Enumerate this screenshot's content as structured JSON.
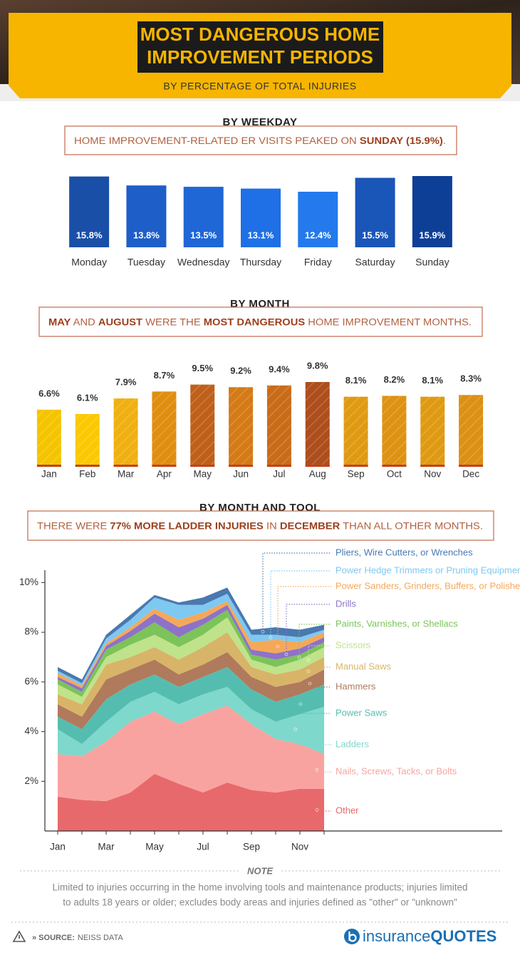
{
  "header": {
    "title": [
      "MOST DANGEROUS HOME",
      "IMPROVEMENT PERIODS"
    ],
    "subtitle": "BY PERCENTAGE OF TOTAL INJURIES"
  },
  "chart_data": [
    {
      "type": "bar",
      "title": "BY WEEKDAY",
      "annotation": [
        {
          "text": "HOME IMPROVEMENT-RELATED ER VISITS PEAKED ON ",
          "bold": false
        },
        {
          "text": "SUNDAY (15.9%)",
          "bold": true
        },
        {
          "text": ".",
          "bold": false
        }
      ],
      "categories": [
        "Monday",
        "Tuesday",
        "Wednesday",
        "Thursday",
        "Friday",
        "Saturday",
        "Sunday"
      ],
      "values": [
        15.8,
        13.8,
        13.5,
        13.1,
        12.4,
        15.5,
        15.9
      ],
      "value_labels": [
        "15.8%",
        "13.8%",
        "13.5%",
        "13.1%",
        "12.4%",
        "15.5%",
        "15.9%"
      ],
      "colors": [
        "#1a4fa8",
        "#1e5ec8",
        "#1f66d6",
        "#1f70e6",
        "#2479ec",
        "#1a55b8",
        "#0e3f96"
      ]
    },
    {
      "type": "bar",
      "title": "BY MONTH",
      "annotation": [
        {
          "text": "MAY",
          "bold": true
        },
        {
          "text": " AND ",
          "bold": false
        },
        {
          "text": "AUGUST",
          "bold": true
        },
        {
          "text": " WERE THE ",
          "bold": false
        },
        {
          "text": "MOST DANGEROUS",
          "bold": true
        },
        {
          "text": " HOME IMPROVEMENT MONTHS.",
          "bold": false
        }
      ],
      "categories": [
        "Jan",
        "Feb",
        "Mar",
        "Apr",
        "May",
        "Jun",
        "Jul",
        "Aug",
        "Sep",
        "Oct",
        "Nov",
        "Dec"
      ],
      "values": [
        6.6,
        6.1,
        7.9,
        8.7,
        9.5,
        9.2,
        9.4,
        9.8,
        8.1,
        8.2,
        8.1,
        8.3
      ],
      "value_labels": [
        "6.6%",
        "6.1%",
        "7.9%",
        "8.7%",
        "9.5%",
        "9.2%",
        "9.4%",
        "9.8%",
        "8.1%",
        "8.2%",
        "8.1%",
        "8.3%"
      ],
      "colors": [
        "#f5c400",
        "#fcc800",
        "#f0b010",
        "#e08e10",
        "#bf601a",
        "#d47a16",
        "#c86c18",
        "#ad4e1c",
        "#e09a12",
        "#de9212",
        "#e09a12",
        "#dc9014"
      ]
    },
    {
      "type": "stacked-area",
      "title": "BY MONTH AND TOOL",
      "annotation": [
        {
          "text": "THERE WERE ",
          "bold": false
        },
        {
          "text": "77% MORE LADDER INJURIES",
          "bold": true
        },
        {
          "text": " IN ",
          "bold": false
        },
        {
          "text": "DECEMBER",
          "bold": true
        },
        {
          "text": " THAN ALL OTHER MONTHS.",
          "bold": false
        }
      ],
      "categories": [
        "Jan",
        null,
        "Mar",
        null,
        "May",
        null,
        "Jul",
        null,
        "Sep",
        null,
        "Nov",
        null
      ],
      "ylim": [
        0,
        10.5
      ],
      "yticks": [
        {
          "value": 2,
          "label": "2%"
        },
        {
          "value": 4,
          "label": "4%"
        },
        {
          "value": 6,
          "label": "6%"
        },
        {
          "value": 8,
          "label": "8%"
        },
        {
          "value": 10,
          "label": "10%"
        }
      ],
      "series": [
        {
          "name": "Other",
          "color": "#e8696b",
          "values": [
            1.38,
            1.25,
            1.2,
            1.55,
            2.3,
            1.9,
            1.55,
            1.95,
            1.65,
            1.55,
            1.7,
            1.7
          ]
        },
        {
          "name": "Nails, Screws, Tacks, or Bolts",
          "color": "#f9a3a0",
          "values": [
            1.72,
            1.75,
            2.4,
            2.85,
            2.5,
            2.4,
            3.15,
            3.1,
            2.65,
            2.15,
            1.8,
            1.4
          ]
        },
        {
          "name": "Ladders",
          "color": "#7ed8cc",
          "values": [
            1.0,
            0.5,
            0.8,
            0.8,
            0.8,
            0.8,
            0.8,
            0.75,
            0.6,
            0.7,
            1.2,
            1.9
          ]
        },
        {
          "name": "Power Saws",
          "color": "#55bdb0",
          "values": [
            0.5,
            0.6,
            0.9,
            0.7,
            0.7,
            0.7,
            0.7,
            0.8,
            0.8,
            0.8,
            0.8,
            0.9
          ]
        },
        {
          "name": "Hammers",
          "color": "#b07a5c",
          "values": [
            0.5,
            0.5,
            0.8,
            0.6,
            0.6,
            0.5,
            0.5,
            0.6,
            0.5,
            0.6,
            0.5,
            0.6
          ]
        },
        {
          "name": "Manual Saws",
          "color": "#d8b468",
          "values": [
            0.4,
            0.5,
            0.6,
            0.5,
            0.5,
            0.6,
            0.7,
            0.8,
            0.4,
            0.5,
            0.5,
            0.5
          ]
        },
        {
          "name": "Scissors",
          "color": "#bfe38a",
          "values": [
            0.4,
            0.3,
            0.3,
            0.5,
            0.5,
            0.5,
            0.5,
            0.6,
            0.3,
            0.3,
            0.4,
            0.4
          ]
        },
        {
          "name": "Paints, Varnishes, or Shellacs",
          "color": "#7cc35a",
          "values": [
            0.2,
            0.2,
            0.3,
            0.3,
            0.5,
            0.4,
            0.4,
            0.3,
            0.2,
            0.3,
            0.2,
            0.2
          ]
        },
        {
          "name": "Drills",
          "color": "#8e72c8",
          "values": [
            0.1,
            0.15,
            0.15,
            0.25,
            0.35,
            0.4,
            0.25,
            0.2,
            0.2,
            0.25,
            0.25,
            0.2
          ]
        },
        {
          "name": "Power Sanders, Grinders, Buffers, or Polishers",
          "color": "#f5a858",
          "values": [
            0.15,
            0.1,
            0.1,
            0.15,
            0.2,
            0.3,
            0.25,
            0.15,
            0.3,
            0.55,
            0.25,
            0.2
          ]
        },
        {
          "name": "Power Hedge Trimmers or Pruning Equipment",
          "color": "#7fc8f0",
          "values": [
            0.1,
            0.1,
            0.2,
            0.3,
            0.45,
            0.6,
            0.3,
            0.3,
            0.3,
            0.2,
            0.2,
            0.1
          ]
        },
        {
          "name": "Pliers, Wire Cutters, or Wrenches",
          "color": "#4a78b0",
          "values": [
            0.15,
            0.15,
            0.15,
            0.2,
            0.1,
            0.1,
            0.3,
            0.25,
            0.2,
            0.3,
            0.3,
            0.2
          ]
        }
      ]
    }
  ],
  "footer": {
    "note_title": "NOTE",
    "note": [
      "Limited to injuries occurring in the home involving tools and maintenance products; injuries limited",
      "to adults 18 years or older; excludes body areas and injuries defined as \"other\" or \"unknown\""
    ],
    "source_label": "» SOURCE:",
    "source": "NEISS DATA",
    "logo": [
      "insurance",
      "QUOTES"
    ]
  }
}
